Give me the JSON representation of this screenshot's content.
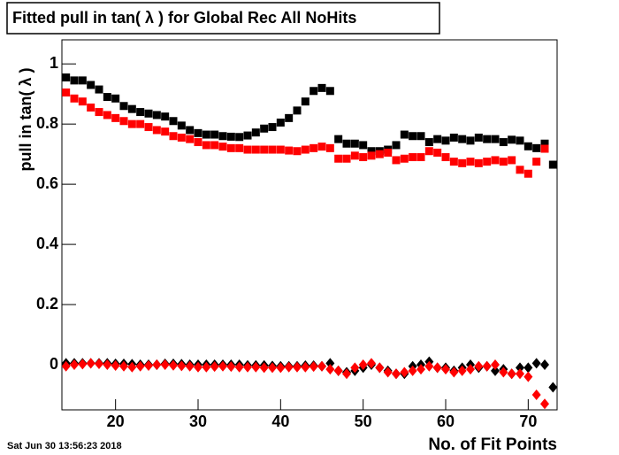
{
  "chart_data": {
    "type": "scatter",
    "title": "Fitted pull in tan( λ ) for Global Rec All NoHits",
    "y_label": "pull in tan( λ )",
    "x_label": "No. of Fit Points",
    "timestamp": "Sat Jun 30 13:56:23 2018",
    "xlim": [
      13.5,
      73.5
    ],
    "ylim": [
      -0.15,
      1.08
    ],
    "xticks": [
      20,
      30,
      40,
      50,
      60,
      70
    ],
    "yticks": [
      0,
      0.2,
      0.4,
      0.6,
      0.8,
      1
    ],
    "x": [
      14,
      15,
      16,
      17,
      18,
      19,
      20,
      21,
      22,
      23,
      24,
      25,
      26,
      27,
      28,
      29,
      30,
      31,
      32,
      33,
      34,
      35,
      36,
      37,
      38,
      39,
      40,
      41,
      42,
      43,
      44,
      45,
      46,
      47,
      48,
      49,
      50,
      51,
      52,
      53,
      54,
      55,
      56,
      57,
      58,
      59,
      60,
      61,
      62,
      63,
      64,
      65,
      66,
      67,
      68,
      69,
      70,
      71,
      72,
      73
    ],
    "series": [
      {
        "color": "#000000",
        "marker": "square",
        "values": [
          0.955,
          0.945,
          0.945,
          0.93,
          0.915,
          0.89,
          0.885,
          0.86,
          0.85,
          0.84,
          0.835,
          0.83,
          0.825,
          0.81,
          0.795,
          0.78,
          0.77,
          0.765,
          0.765,
          0.76,
          0.758,
          0.757,
          0.762,
          0.772,
          0.785,
          0.79,
          0.805,
          0.82,
          0.845,
          0.875,
          0.91,
          0.92,
          0.91,
          0.75,
          0.735,
          0.735,
          0.73,
          0.71,
          0.71,
          0.715,
          0.73,
          0.765,
          0.76,
          0.76,
          0.74,
          0.75,
          0.745,
          0.755,
          0.75,
          0.745,
          0.755,
          0.75,
          0.75,
          0.74,
          0.748,
          0.745,
          0.726,
          0.72,
          0.735,
          0.665
        ]
      },
      {
        "color": "#ff0000",
        "marker": "square",
        "values": [
          0.905,
          0.885,
          0.875,
          0.855,
          0.84,
          0.83,
          0.82,
          0.81,
          0.8,
          0.8,
          0.79,
          0.78,
          0.775,
          0.76,
          0.755,
          0.75,
          0.74,
          0.73,
          0.73,
          0.725,
          0.72,
          0.72,
          0.715,
          0.715,
          0.715,
          0.715,
          0.715,
          0.712,
          0.71,
          0.715,
          0.72,
          0.725,
          0.72,
          0.685,
          0.685,
          0.695,
          0.69,
          0.695,
          0.7,
          0.705,
          0.68,
          0.685,
          0.69,
          0.69,
          0.71,
          0.705,
          0.69,
          0.675,
          0.67,
          0.675,
          0.67,
          0.675,
          0.68,
          0.675,
          0.68,
          0.648,
          0.635,
          0.675,
          0.718,
          null
        ]
      },
      {
        "color": "#000000",
        "marker": "diamond",
        "values": [
          0.005,
          0.005,
          0.005,
          0.005,
          0.005,
          0.005,
          0.003,
          0.003,
          0.002,
          0.0,
          0.0,
          0.0,
          0.003,
          0.003,
          0.002,
          0.0,
          0.0,
          0.0,
          0.0,
          0.0,
          0.0,
          0.0,
          -0.002,
          -0.002,
          -0.002,
          -0.004,
          -0.005,
          -0.005,
          -0.005,
          -0.003,
          -0.003,
          -0.005,
          0.005,
          -0.02,
          -0.025,
          -0.02,
          -0.01,
          0.0,
          -0.01,
          -0.02,
          -0.03,
          -0.03,
          -0.005,
          0.0,
          0.01,
          -0.01,
          -0.01,
          -0.02,
          -0.01,
          0.0,
          -0.01,
          -0.005,
          -0.02,
          -0.015,
          -0.03,
          -0.01,
          -0.01,
          0.005,
          0.0,
          -0.075
        ]
      },
      {
        "color": "#ff0000",
        "marker": "diamond",
        "values": [
          -0.005,
          0.0,
          0.002,
          0.005,
          0.003,
          0.0,
          -0.003,
          -0.005,
          -0.008,
          -0.005,
          -0.003,
          0.0,
          0.0,
          -0.002,
          -0.004,
          -0.005,
          -0.008,
          -0.008,
          -0.006,
          -0.005,
          -0.006,
          -0.008,
          -0.008,
          -0.008,
          -0.01,
          -0.01,
          -0.01,
          -0.008,
          -0.008,
          -0.008,
          -0.006,
          -0.005,
          -0.015,
          -0.02,
          -0.03,
          -0.01,
          0.0,
          0.005,
          -0.01,
          -0.025,
          -0.03,
          -0.025,
          -0.02,
          -0.015,
          -0.005,
          -0.01,
          -0.015,
          -0.025,
          -0.02,
          -0.015,
          -0.005,
          -0.005,
          0.0,
          -0.025,
          -0.03,
          -0.03,
          -0.04,
          -0.1,
          -0.13,
          null
        ]
      }
    ]
  }
}
